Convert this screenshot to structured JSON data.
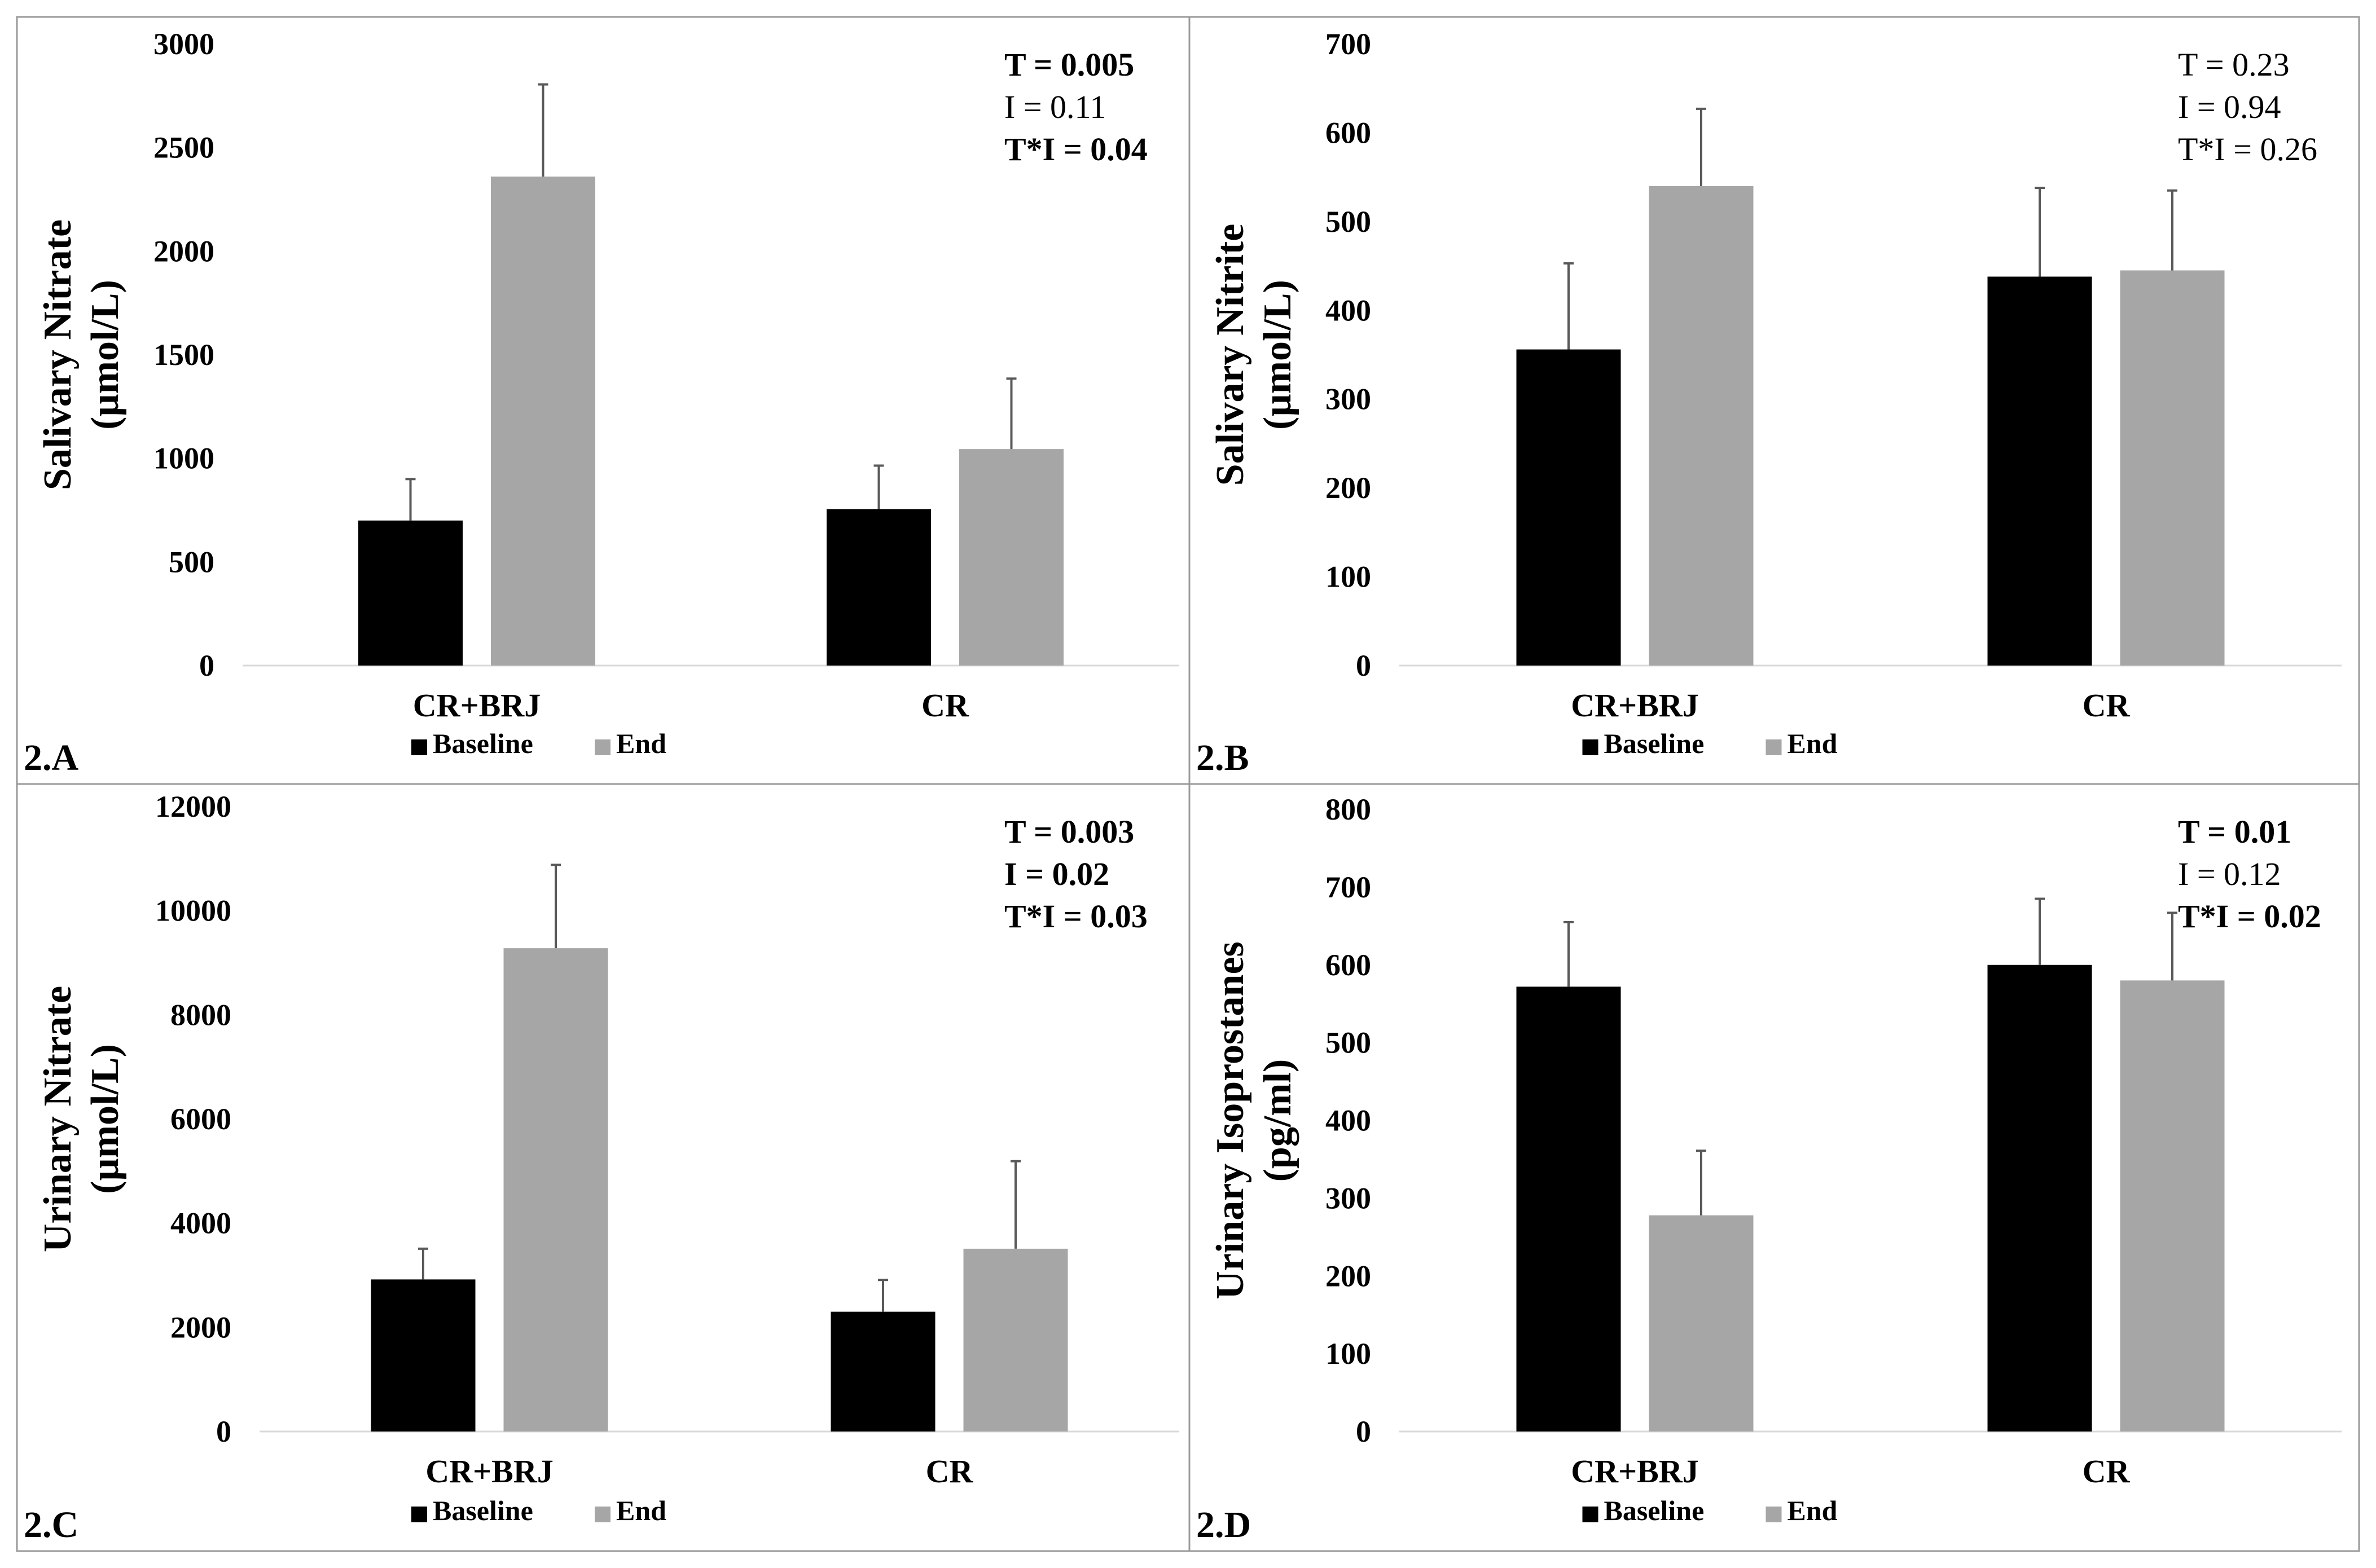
{
  "colors": {
    "baseline": "#000000",
    "end": "#a6a6a6",
    "error_bar": "#595959",
    "axis": "#d9d9d9",
    "panel_border": "#9a9a9a",
    "text": "#000000"
  },
  "legend": {
    "baseline": "Baseline",
    "end": "End"
  },
  "chart_data": [
    {
      "type": "bar",
      "panel_label": "2.A",
      "title": "",
      "ylabel_lines": [
        "Salivary Nitrate",
        "(µmol/L)"
      ],
      "xlabel": "",
      "categories": [
        "CR+BRJ",
        "CR"
      ],
      "series": [
        {
          "name": "Baseline",
          "values": [
            700,
            755
          ],
          "errors": [
            200,
            210
          ]
        },
        {
          "name": "End",
          "values": [
            2360,
            1045
          ],
          "errors": [
            445,
            340
          ]
        }
      ],
      "ylim": [
        0,
        3000
      ],
      "yticks": [
        0,
        500,
        1000,
        1500,
        2000,
        2500,
        3000
      ],
      "tick_labels": [
        "0",
        "500",
        "1000",
        "1500",
        "2000",
        "2500",
        "3000"
      ],
      "stats": [
        {
          "text": "T = 0.005",
          "bold": true
        },
        {
          "text": "I = 0.11",
          "bold": false
        },
        {
          "text": "T*I = 0.04",
          "bold": true
        }
      ],
      "legend_position": "bottom-center",
      "grid": false
    },
    {
      "type": "bar",
      "panel_label": "2.B",
      "title": "",
      "ylabel_lines": [
        "Salivary Nitrite",
        "(µmol/L)"
      ],
      "xlabel": "",
      "categories": [
        "CR+BRJ",
        "CR"
      ],
      "series": [
        {
          "name": "Baseline",
          "values": [
            356,
            438
          ],
          "errors": [
            97,
            100
          ]
        },
        {
          "name": "End",
          "values": [
            540,
            445
          ],
          "errors": [
            87,
            90
          ]
        }
      ],
      "ylim": [
        0,
        700
      ],
      "yticks": [
        0,
        100,
        200,
        300,
        400,
        500,
        600,
        700
      ],
      "tick_labels": [
        "0",
        "100",
        "200",
        "300",
        "400",
        "500",
        "600",
        "700"
      ],
      "stats": [
        {
          "text": "T = 0.23",
          "bold": false
        },
        {
          "text": "I = 0.94",
          "bold": false
        },
        {
          "text": "T*I = 0.26",
          "bold": false
        }
      ],
      "legend_position": "bottom-center",
      "grid": false
    },
    {
      "type": "bar",
      "panel_label": "2.C",
      "title": "",
      "ylabel_lines": [
        "Urinary Nitrate",
        "(µmol/L)"
      ],
      "xlabel": "",
      "categories": [
        "CR+BRJ",
        "CR"
      ],
      "series": [
        {
          "name": "Baseline",
          "values": [
            2920,
            2300
          ],
          "errors": [
            590,
            610
          ]
        },
        {
          "name": "End",
          "values": [
            9280,
            3510
          ],
          "errors": [
            1600,
            1680
          ]
        }
      ],
      "ylim": [
        0,
        12000
      ],
      "yticks": [
        0,
        2000,
        4000,
        6000,
        8000,
        10000,
        12000
      ],
      "tick_labels": [
        "0",
        "2000",
        "4000",
        "6000",
        "8000",
        "10000",
        "12000"
      ],
      "stats": [
        {
          "text": "T = 0.003",
          "bold": true
        },
        {
          "text": "I = 0.02",
          "bold": true
        },
        {
          "text": "T*I = 0.03",
          "bold": true
        }
      ],
      "legend_position": "bottom-center",
      "grid": false
    },
    {
      "type": "bar",
      "panel_label": "2.D",
      "title": "",
      "ylabel_lines": [
        "Urinary Isoprostanes",
        "(pg/ml)"
      ],
      "xlabel": "",
      "categories": [
        "CR+BRJ",
        "CR"
      ],
      "series": [
        {
          "name": "Baseline",
          "values": [
            572,
            600
          ],
          "errors": [
            83,
            85
          ]
        },
        {
          "name": "End",
          "values": [
            278,
            580
          ],
          "errors": [
            83,
            87
          ]
        }
      ],
      "ylim": [
        0,
        800
      ],
      "yticks": [
        0,
        100,
        200,
        300,
        400,
        500,
        600,
        700,
        800
      ],
      "tick_labels": [
        "0",
        "100",
        "200",
        "300",
        "400",
        "500",
        "600",
        "700",
        "800"
      ],
      "stats": [
        {
          "text": "T = 0.01",
          "bold": true
        },
        {
          "text": "I = 0.12",
          "bold": false
        },
        {
          "text": "T*I = 0.02",
          "bold": true
        }
      ],
      "legend_position": "bottom-center",
      "grid": false
    }
  ]
}
